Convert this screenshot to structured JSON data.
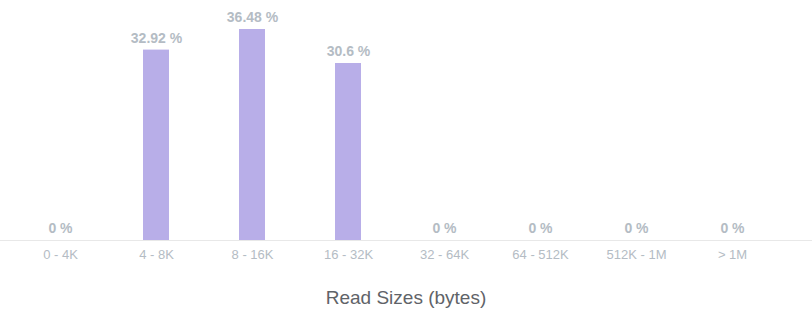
{
  "chart_data": {
    "type": "bar",
    "x_label": "Read Sizes (bytes)",
    "categories": [
      "0 - 4K",
      "4 - 8K",
      "8 - 16K",
      "16 - 32K",
      "32 - 64K",
      "64 - 512K",
      "512K - 1M",
      "> 1M"
    ],
    "values": [
      0,
      32.92,
      36.48,
      30.6,
      0,
      0,
      0,
      0
    ],
    "value_labels": [
      "0 %",
      "32.92 %",
      "36.48 %",
      "30.6 %",
      "0 %",
      "0 %",
      "0 %",
      "0 %"
    ],
    "color": "#b8aee8",
    "data_labels": true,
    "tick_labels": "x",
    "grid": false
  }
}
